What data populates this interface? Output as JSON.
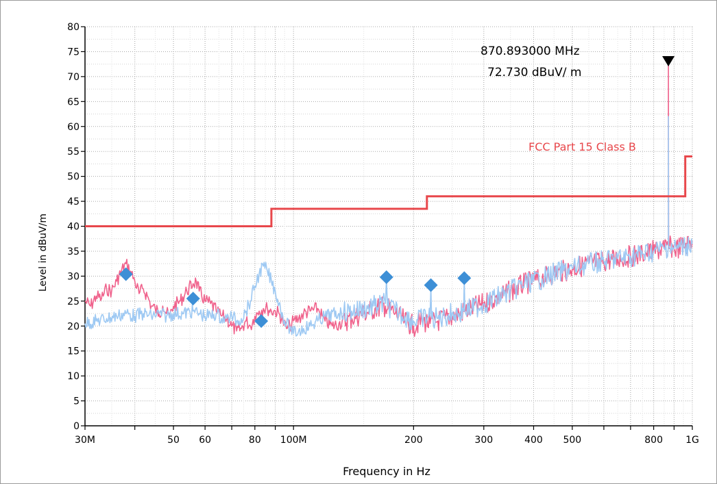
{
  "chart_data": {
    "type": "line",
    "xscale": "log",
    "xlabel": "Frequency in Hz",
    "ylabel": "Level in dBuV/m",
    "xlim": [
      30,
      1000
    ],
    "ylim": [
      0,
      80
    ],
    "grid": true,
    "x_ticks": [
      {
        "value": 30,
        "label": "30M"
      },
      {
        "value": 40,
        "label": ""
      },
      {
        "value": 50,
        "label": "50"
      },
      {
        "value": 60,
        "label": "60"
      },
      {
        "value": 70,
        "label": ""
      },
      {
        "value": 80,
        "label": "80"
      },
      {
        "value": 90,
        "label": ""
      },
      {
        "value": 100,
        "label": "100M"
      },
      {
        "value": 200,
        "label": "200"
      },
      {
        "value": 300,
        "label": "300"
      },
      {
        "value": 400,
        "label": "400"
      },
      {
        "value": 500,
        "label": "500"
      },
      {
        "value": 600,
        "label": ""
      },
      {
        "value": 700,
        "label": ""
      },
      {
        "value": 800,
        "label": "800"
      },
      {
        "value": 900,
        "label": ""
      },
      {
        "value": 1000,
        "label": "1G"
      }
    ],
    "y_ticks": [
      0,
      5,
      10,
      15,
      20,
      25,
      30,
      35,
      40,
      45,
      50,
      55,
      60,
      65,
      70,
      75,
      80
    ],
    "limit_line": {
      "name": "FCC Part 15 Class B",
      "color": "#e8474b",
      "points": [
        [
          30,
          40
        ],
        [
          88,
          40
        ],
        [
          88,
          43.5
        ],
        [
          216,
          43.5
        ],
        [
          216,
          46
        ],
        [
          960,
          46
        ],
        [
          960,
          54
        ],
        [
          1000,
          54
        ]
      ]
    },
    "series": [
      {
        "color": "#f0628c",
        "values": [
          [
            30,
            25
          ],
          [
            31,
            24
          ],
          [
            32,
            26
          ],
          [
            33,
            25.5
          ],
          [
            34,
            27.5
          ],
          [
            35,
            27
          ],
          [
            36,
            29
          ],
          [
            37,
            31
          ],
          [
            38,
            32.5
          ],
          [
            39,
            31
          ],
          [
            40,
            29
          ],
          [
            41,
            26.5
          ],
          [
            42,
            27.5
          ],
          [
            43,
            26
          ],
          [
            44,
            24
          ],
          [
            45,
            23.5
          ],
          [
            46,
            22.5
          ],
          [
            47,
            24
          ],
          [
            48,
            22.5
          ],
          [
            49,
            22
          ],
          [
            50,
            24
          ],
          [
            52,
            25
          ],
          [
            54,
            27
          ],
          [
            56,
            28.5
          ],
          [
            57,
            29
          ],
          [
            58,
            27
          ],
          [
            60,
            25
          ],
          [
            62,
            24.5
          ],
          [
            64,
            23
          ],
          [
            66,
            22
          ],
          [
            68,
            21.5
          ],
          [
            70,
            20
          ],
          [
            72,
            19
          ],
          [
            74,
            19.5
          ],
          [
            76,
            21
          ],
          [
            78,
            20
          ],
          [
            80,
            22
          ],
          [
            82,
            23
          ],
          [
            84,
            23.5
          ],
          [
            86,
            23.5
          ],
          [
            88,
            23
          ],
          [
            90,
            23
          ],
          [
            92,
            22.5
          ],
          [
            94,
            21
          ],
          [
            96,
            19.5
          ],
          [
            98,
            20
          ],
          [
            100,
            21
          ],
          [
            103,
            21.5
          ],
          [
            106,
            22.5
          ],
          [
            110,
            23
          ],
          [
            115,
            23.5
          ],
          [
            118,
            22
          ],
          [
            120,
            21
          ],
          [
            125,
            20
          ],
          [
            130,
            20.5
          ],
          [
            140,
            21.5
          ],
          [
            150,
            22.5
          ],
          [
            160,
            23.5
          ],
          [
            170,
            24
          ],
          [
            180,
            22.5
          ],
          [
            190,
            21
          ],
          [
            200,
            20
          ],
          [
            210,
            21
          ],
          [
            220,
            20.5
          ],
          [
            230,
            21
          ],
          [
            240,
            21.5
          ],
          [
            250,
            22
          ],
          [
            260,
            22.5
          ],
          [
            270,
            23
          ],
          [
            280,
            23.5
          ],
          [
            300,
            24.5
          ],
          [
            320,
            25.5
          ],
          [
            340,
            26.5
          ],
          [
            360,
            27.5
          ],
          [
            380,
            28.5
          ],
          [
            400,
            29
          ],
          [
            420,
            29.5
          ],
          [
            450,
            30.5
          ],
          [
            500,
            31.5
          ],
          [
            550,
            32.5
          ],
          [
            600,
            33
          ],
          [
            650,
            33.5
          ],
          [
            700,
            34
          ],
          [
            750,
            34.5
          ],
          [
            800,
            35
          ],
          [
            850,
            35.5
          ],
          [
            871,
            36
          ],
          [
            871,
            72.7
          ],
          [
            872,
            36
          ],
          [
            900,
            35.5
          ],
          [
            950,
            36
          ],
          [
            1000,
            37
          ]
        ]
      },
      {
        "color": "#9ec9f3",
        "values": [
          [
            30,
            20.5
          ],
          [
            32,
            21
          ],
          [
            34,
            21.5
          ],
          [
            36,
            22
          ],
          [
            38,
            22.5
          ],
          [
            40,
            22
          ],
          [
            42,
            22.5
          ],
          [
            44,
            22
          ],
          [
            46,
            22.5
          ],
          [
            48,
            22
          ],
          [
            50,
            22.5
          ],
          [
            53,
            22.5
          ],
          [
            56,
            23
          ],
          [
            58,
            22.5
          ],
          [
            60,
            22
          ],
          [
            62,
            22
          ],
          [
            64,
            22.5
          ],
          [
            66,
            21.5
          ],
          [
            68,
            21.5
          ],
          [
            70,
            22
          ],
          [
            72,
            21
          ],
          [
            74,
            21.5
          ],
          [
            76,
            23
          ],
          [
            78,
            25
          ],
          [
            80,
            28
          ],
          [
            82,
            30.5
          ],
          [
            84,
            32
          ],
          [
            86,
            31
          ],
          [
            88,
            29
          ],
          [
            90,
            27
          ],
          [
            92,
            24.5
          ],
          [
            94,
            22
          ],
          [
            96,
            20.5
          ],
          [
            98,
            19.5
          ],
          [
            100,
            18.5
          ],
          [
            103,
            19
          ],
          [
            106,
            19.5
          ],
          [
            110,
            20
          ],
          [
            115,
            21
          ],
          [
            120,
            22
          ],
          [
            130,
            22.5
          ],
          [
            140,
            23
          ],
          [
            150,
            23.5
          ],
          [
            160,
            24
          ],
          [
            170,
            24.5
          ],
          [
            171,
            29.5
          ],
          [
            172,
            24
          ],
          [
            180,
            23
          ],
          [
            190,
            22
          ],
          [
            200,
            21
          ],
          [
            210,
            21.5
          ],
          [
            220,
            22
          ],
          [
            221,
            28
          ],
          [
            222,
            21.5
          ],
          [
            230,
            21.5
          ],
          [
            240,
            22
          ],
          [
            250,
            22.5
          ],
          [
            260,
            22.5
          ],
          [
            267,
            23
          ],
          [
            268,
            29.5
          ],
          [
            269,
            23
          ],
          [
            280,
            23.5
          ],
          [
            300,
            24.5
          ],
          [
            320,
            25.5
          ],
          [
            340,
            26.5
          ],
          [
            360,
            27.5
          ],
          [
            380,
            28.5
          ],
          [
            400,
            29
          ],
          [
            420,
            29.5
          ],
          [
            450,
            30.5
          ],
          [
            500,
            31.5
          ],
          [
            550,
            32.5
          ],
          [
            600,
            33
          ],
          [
            650,
            33.5
          ],
          [
            700,
            34
          ],
          [
            750,
            34.5
          ],
          [
            800,
            35
          ],
          [
            850,
            35.5
          ],
          [
            871,
            36
          ],
          [
            871,
            62
          ],
          [
            872,
            36
          ],
          [
            900,
            35.5
          ],
          [
            950,
            36
          ],
          [
            1000,
            36.5
          ]
        ]
      }
    ],
    "markers": [
      {
        "x": 38,
        "y": 30.4
      },
      {
        "x": 56,
        "y": 25.5
      },
      {
        "x": 83,
        "y": 21
      },
      {
        "x": 171,
        "y": 29.8
      },
      {
        "x": 221,
        "y": 28.2
      },
      {
        "x": 268,
        "y": 29.6
      }
    ],
    "marker_color": "#3d8fd6",
    "peak": {
      "x": 870.893,
      "y": 72.73,
      "freq_text": "870.893000 MHz",
      "level_text": "72.730 dBuV/ m"
    }
  }
}
